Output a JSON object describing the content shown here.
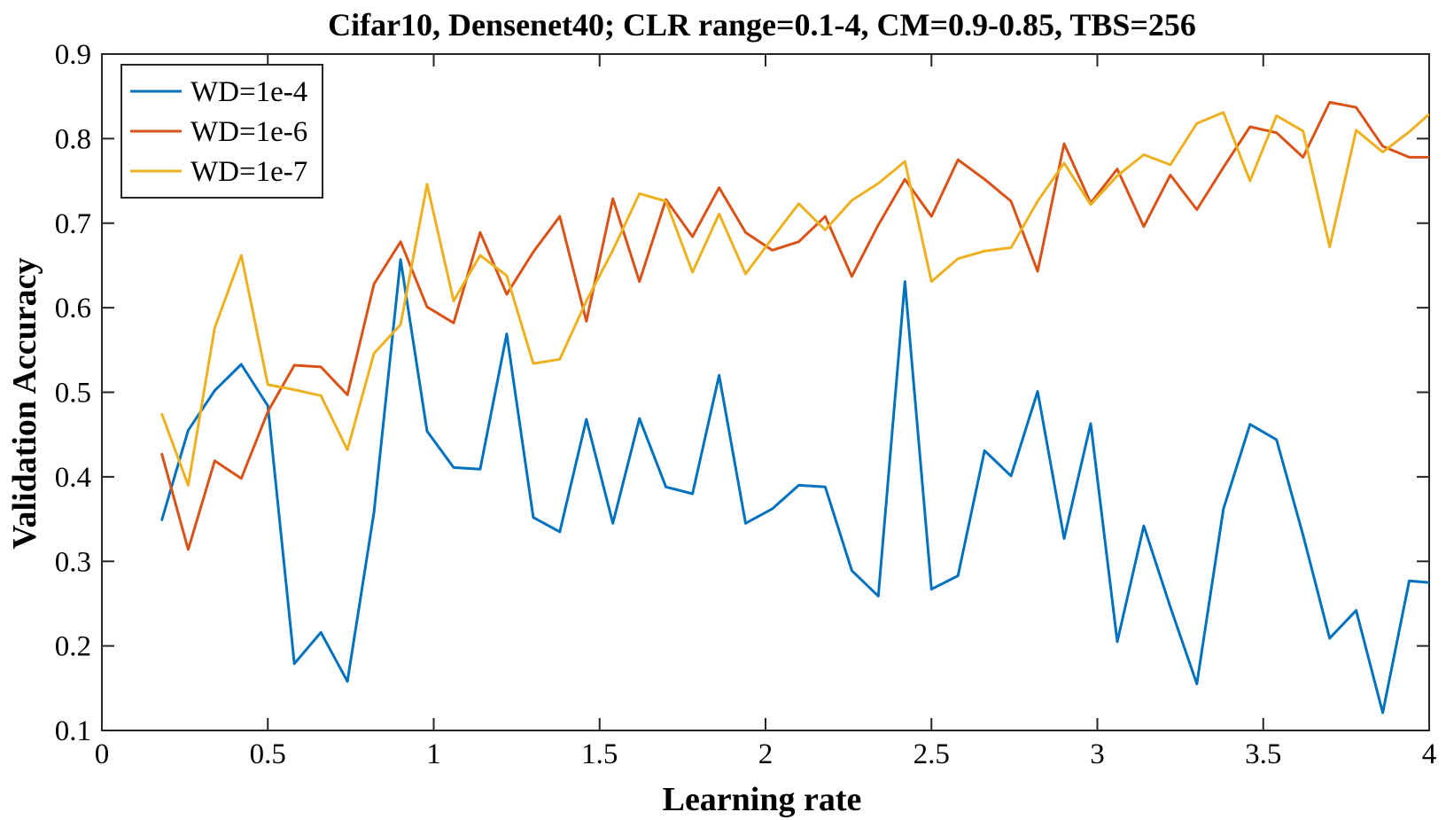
{
  "chart_data": {
    "type": "line",
    "title": "Cifar10, Densenet40; CLR range=0.1-4, CM=0.9-0.85, TBS=256",
    "xlabel": "Learning rate",
    "ylabel": "Validation Accuracy",
    "xlim": [
      0,
      4
    ],
    "ylim": [
      0.1,
      0.9
    ],
    "xticks": [
      0,
      0.5,
      1,
      1.5,
      2,
      2.5,
      3,
      3.5,
      4
    ],
    "xtick_labels": [
      "0",
      "0.5",
      "1",
      "1.5",
      "2",
      "2.5",
      "3",
      "3.5",
      "4"
    ],
    "yticks": [
      0.1,
      0.2,
      0.3,
      0.4,
      0.5,
      0.6,
      0.7,
      0.8,
      0.9
    ],
    "ytick_labels": [
      "0.1",
      "0.2",
      "0.3",
      "0.4",
      "0.5",
      "0.6",
      "0.7",
      "0.8",
      "0.9"
    ],
    "grid": false,
    "legend_position": "top-left",
    "x": [
      0.18,
      0.26,
      0.34,
      0.42,
      0.5,
      0.58,
      0.66,
      0.74,
      0.82,
      0.9,
      0.98,
      1.06,
      1.14,
      1.22,
      1.3,
      1.38,
      1.46,
      1.54,
      1.62,
      1.7,
      1.78,
      1.86,
      1.94,
      2.02,
      2.1,
      2.18,
      2.26,
      2.34,
      2.42,
      2.5,
      2.58,
      2.66,
      2.74,
      2.82,
      2.9,
      2.98,
      3.06,
      3.14,
      3.22,
      3.3,
      3.38,
      3.46,
      3.54,
      3.62,
      3.7,
      3.78,
      3.86,
      3.94,
      4.0
    ],
    "series": [
      {
        "name": "WD=1e-4",
        "color": "#0072BD",
        "values": [
          0.348,
          0.455,
          0.502,
          0.533,
          0.484,
          0.179,
          0.216,
          0.158,
          0.358,
          0.657,
          0.454,
          0.411,
          0.409,
          0.569,
          0.352,
          0.335,
          0.468,
          0.345,
          0.469,
          0.388,
          0.38,
          0.52,
          0.345,
          0.362,
          0.39,
          0.388,
          0.289,
          0.259,
          0.631,
          0.267,
          0.283,
          0.431,
          0.401,
          0.501,
          0.327,
          0.463,
          0.205,
          0.342,
          0.246,
          0.155,
          0.362,
          0.462,
          0.444,
          0.331,
          0.209,
          0.242,
          0.121,
          0.277,
          0.275
        ]
      },
      {
        "name": "WD=1e-6",
        "color": "#D95319",
        "values": [
          0.428,
          0.314,
          0.419,
          0.398,
          0.477,
          0.532,
          0.53,
          0.497,
          0.628,
          0.678,
          0.601,
          0.582,
          0.689,
          0.616,
          0.666,
          0.708,
          0.584,
          0.729,
          0.631,
          0.728,
          0.684,
          0.742,
          0.689,
          0.668,
          0.678,
          0.708,
          0.637,
          0.698,
          0.752,
          0.708,
          0.775,
          0.752,
          0.726,
          0.643,
          0.794,
          0.724,
          0.764,
          0.696,
          0.757,
          0.716,
          0.766,
          0.814,
          0.807,
          0.778,
          0.843,
          0.837,
          0.791,
          0.778,
          0.778
        ]
      },
      {
        "name": "WD=1e-7",
        "color": "#EDB120",
        "values": [
          0.475,
          0.39,
          0.576,
          0.662,
          0.509,
          0.503,
          0.496,
          0.432,
          0.546,
          0.58,
          0.746,
          0.608,
          0.662,
          0.638,
          0.534,
          0.539,
          0.608,
          0.668,
          0.735,
          0.726,
          0.642,
          0.711,
          0.64,
          0.682,
          0.723,
          0.692,
          0.727,
          0.747,
          0.773,
          0.631,
          0.658,
          0.667,
          0.671,
          0.726,
          0.771,
          0.722,
          0.756,
          0.781,
          0.769,
          0.818,
          0.831,
          0.75,
          0.827,
          0.809,
          0.672,
          0.81,
          0.784,
          0.808,
          0.829
        ]
      }
    ]
  }
}
